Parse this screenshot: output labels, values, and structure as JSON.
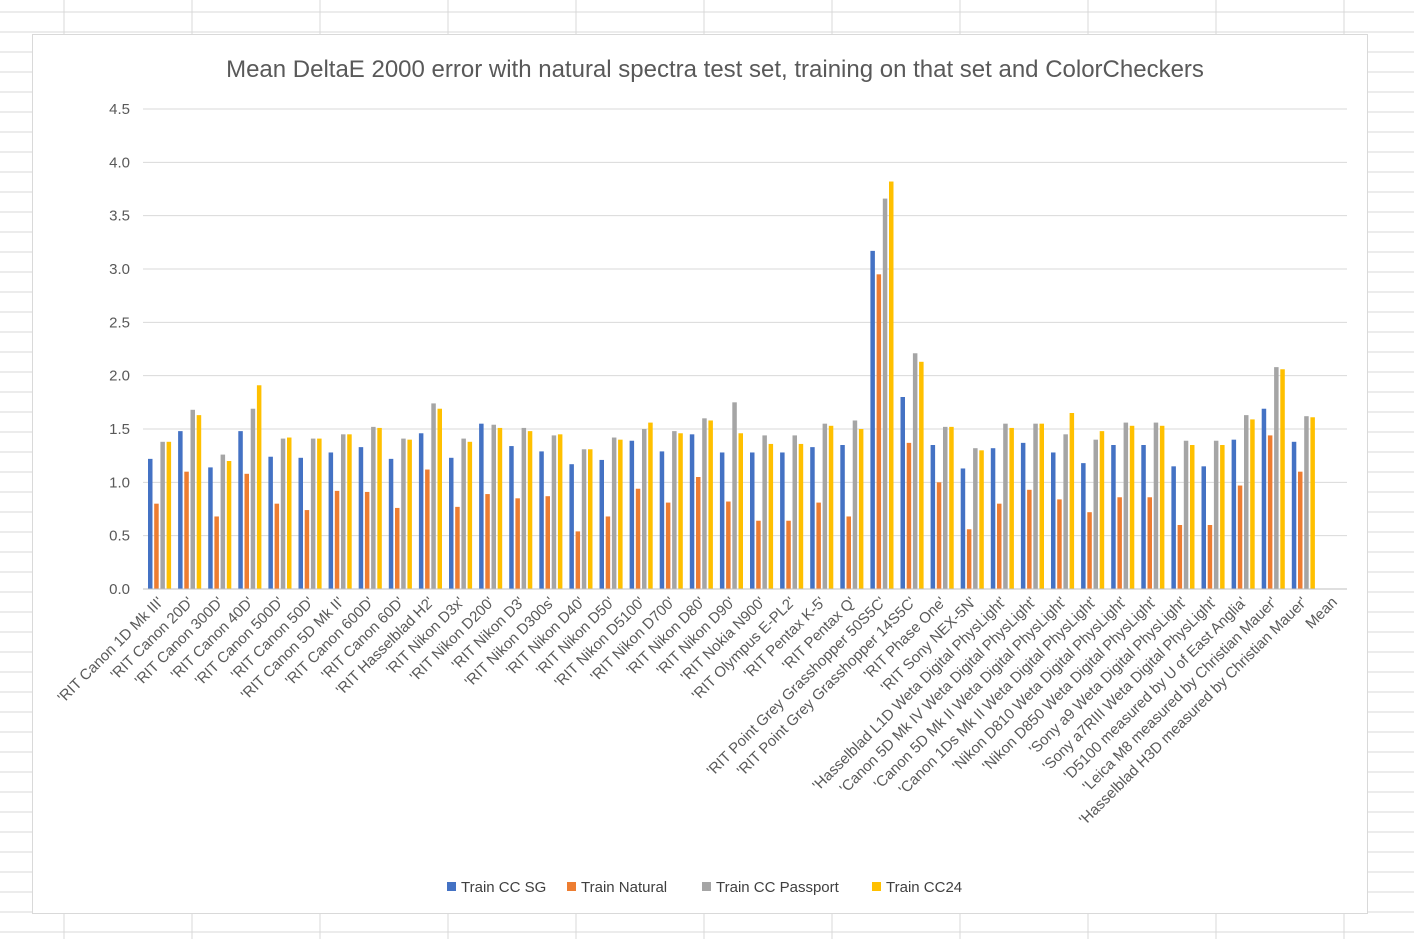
{
  "colors": {
    "sheet_background": "#ffffff",
    "sheet_gridline": "#d9d9d9",
    "chart_gridline": "#d9d9d9",
    "text": "#595959",
    "series": [
      "#4472c4",
      "#ed7d31",
      "#a5a5a5",
      "#ffc000"
    ]
  },
  "chart_data": {
    "type": "bar",
    "title": "Mean DeltaE 2000 error with natural spectra test set, training on that set and ColorCheckers",
    "xlabel": "",
    "ylabel": "",
    "ylim": [
      0,
      4.5
    ],
    "yticks": [
      "0.0",
      "0.5",
      "1.0",
      "1.5",
      "2.0",
      "2.5",
      "3.0",
      "3.5",
      "4.0",
      "4.5"
    ],
    "grid": true,
    "legend_position": "bottom",
    "categories": [
      "'RIT Canon 1D Mk III'",
      "'RIT Canon 20D'",
      "'RIT Canon 300D'",
      "'RIT Canon 40D'",
      "'RIT Canon 500D'",
      "'RIT Canon 50D'",
      "'RIT Canon 5D Mk II'",
      "'RIT Canon 600D'",
      "'RIT Canon 60D'",
      "'RIT Hasselblad H2'",
      "'RIT Nikon D3x'",
      "'RIT Nikon D200'",
      "'RIT Nikon D3'",
      "'RIT Nikon D300s'",
      "'RIT Nikon D40'",
      "'RIT Nikon D50'",
      "'RIT Nikon D5100'",
      "'RIT Nikon D700'",
      "'RIT Nikon D80'",
      "'RIT Nikon D90'",
      "'RIT Nokia N900'",
      "'RIT Olympus E-PL2'",
      "'RIT Pentax K-5'",
      "'RIT Pentax Q'",
      "'RIT Point Grey Grasshopper 50S5C'",
      "'RIT Point Grey Grasshopper 14S5C'",
      "'RIT Phase One'",
      "'RIT Sony NEX-5N'",
      "'Hasselblad L1D Weta Digital PhysLight'",
      "'Canon 5D Mk IV Weta Digital PhysLight'",
      "'Canon 5D Mk II Weta Digital PhysLight'",
      "'Canon 1Ds Mk II Weta Digital PhysLight'",
      "'Nikon D810 Weta Digital PhysLight'",
      "'Nikon D850 Weta Digital PhysLight'",
      "'Sony a9 Weta Digital PhysLight'",
      "'Sony a7RIII Weta Digital PhysLight'",
      "'D5100 measured by U of East Anglia'",
      "'Leica M8 measured by Christian Mauer'",
      "'Hasselblad H3D measured by Christian Mauer'",
      "Mean"
    ],
    "series": [
      {
        "name": "Train CC SG",
        "values": [
          1.22,
          1.48,
          1.14,
          1.48,
          1.24,
          1.23,
          1.28,
          1.33,
          1.22,
          1.46,
          1.23,
          1.55,
          1.34,
          1.29,
          1.17,
          1.21,
          1.39,
          1.29,
          1.45,
          1.28,
          1.28,
          1.28,
          1.33,
          1.35,
          3.17,
          1.8,
          1.35,
          1.13,
          1.32,
          1.37,
          1.28,
          1.18,
          1.35,
          1.35,
          1.15,
          1.15,
          1.4,
          1.69,
          1.38,
          0
        ]
      },
      {
        "name": "Train Natural",
        "values": [
          0.8,
          1.1,
          0.68,
          1.08,
          0.8,
          0.74,
          0.92,
          0.91,
          0.76,
          1.12,
          0.77,
          0.89,
          0.85,
          0.87,
          0.54,
          0.68,
          0.94,
          0.81,
          1.05,
          0.82,
          0.64,
          0.64,
          0.81,
          0.68,
          2.95,
          1.37,
          1.0,
          0.56,
          0.8,
          0.93,
          0.84,
          0.72,
          0.86,
          0.86,
          0.6,
          0.6,
          0.97,
          1.44,
          1.1,
          0
        ]
      },
      {
        "name": "Train CC Passport",
        "values": [
          1.38,
          1.68,
          1.26,
          1.69,
          1.41,
          1.41,
          1.45,
          1.52,
          1.41,
          1.74,
          1.41,
          1.54,
          1.51,
          1.44,
          1.31,
          1.42,
          1.5,
          1.48,
          1.6,
          1.75,
          1.44,
          1.44,
          1.55,
          1.58,
          3.66,
          2.21,
          1.52,
          1.32,
          1.55,
          1.55,
          1.45,
          1.4,
          1.56,
          1.56,
          1.39,
          1.39,
          1.63,
          2.08,
          1.62,
          0
        ]
      },
      {
        "name": "Train CC24",
        "values": [
          1.38,
          1.63,
          1.2,
          1.91,
          1.42,
          1.41,
          1.45,
          1.51,
          1.4,
          1.69,
          1.38,
          1.51,
          1.48,
          1.45,
          1.31,
          1.4,
          1.56,
          1.46,
          1.58,
          1.46,
          1.36,
          1.36,
          1.53,
          1.5,
          3.82,
          2.13,
          1.52,
          1.3,
          1.51,
          1.55,
          1.65,
          1.48,
          1.53,
          1.53,
          1.35,
          1.35,
          1.59,
          2.06,
          1.61,
          0
        ]
      }
    ]
  }
}
